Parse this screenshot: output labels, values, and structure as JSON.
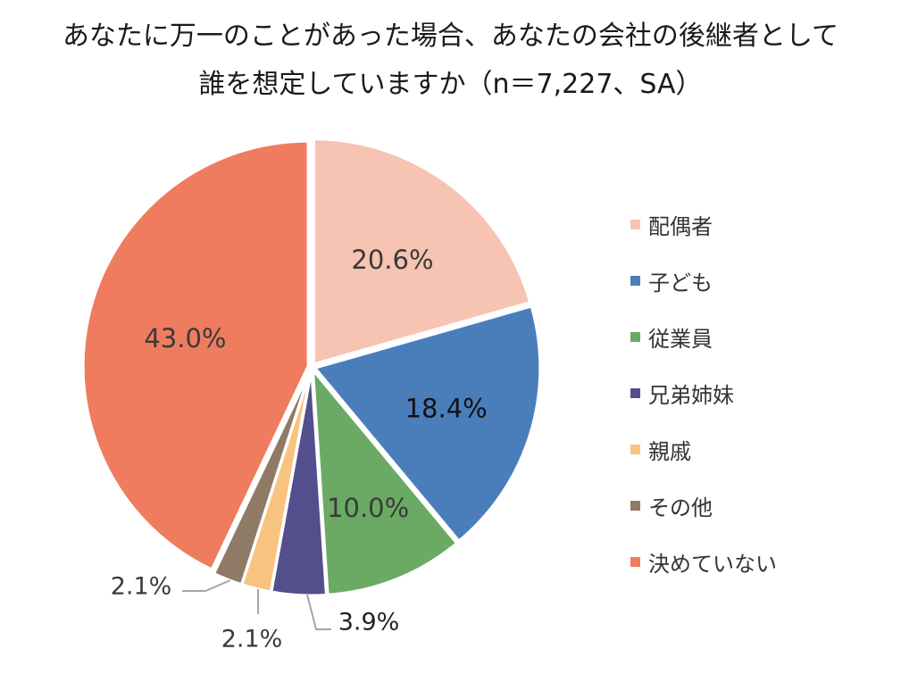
{
  "chart_data": {
    "type": "pie",
    "title_lines": [
      "あなたに万一のことがあった場合、あなたの会社の後継者として",
      "誰を想定していますか（n＝7,227、SA）"
    ],
    "legend_position": "right",
    "slices": [
      {
        "label": "配偶者",
        "value": 20.6,
        "display": "20.6%",
        "color": "#f7c3b2",
        "label_color": "#3a3a3a"
      },
      {
        "label": "子ども",
        "value": 18.4,
        "display": "18.4%",
        "color": "#4a7ebb",
        "label_color": "#111111"
      },
      {
        "label": "従業員",
        "value": 10.0,
        "display": "10.0%",
        "color": "#6aaa64",
        "label_color": "#3a3a3a"
      },
      {
        "label": "兄弟姉妹",
        "value": 3.9,
        "display": "3.9%",
        "color": "#544e8c",
        "label_color": "#222222"
      },
      {
        "label": "親戚",
        "value": 2.1,
        "display": "2.1%",
        "color": "#f7c37e",
        "label_color": "#3a3a3a"
      },
      {
        "label": "その他",
        "value": 2.1,
        "display": "2.1%",
        "color": "#8f7a66",
        "label_color": "#3a3a3a"
      },
      {
        "label": "決めていない",
        "value": 43.0,
        "display": "43.0%",
        "color": "#ef7c5e",
        "label_color": "#3a3a3a"
      }
    ]
  }
}
